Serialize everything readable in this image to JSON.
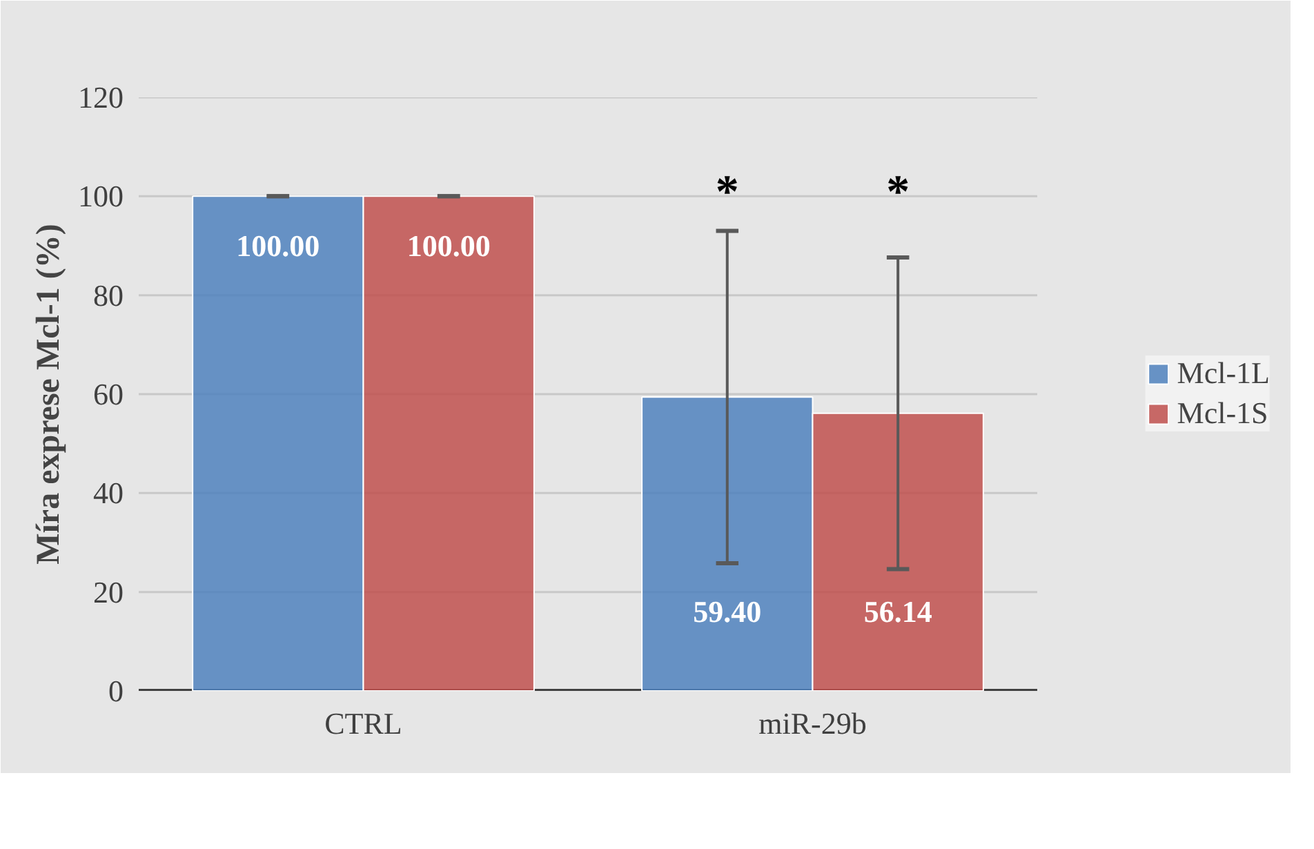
{
  "chart_data": {
    "type": "bar",
    "ylabel": "Míra exprese Mcl-1 (%)",
    "categories": [
      "CTRL",
      "miR-29b"
    ],
    "series": [
      {
        "name": "Mcl-1L",
        "color": "#4f81bd",
        "values": [
          100,
          59.4
        ],
        "errors": [
          0,
          33.6
        ],
        "value_labels": [
          "100.00",
          "59.40"
        ]
      },
      {
        "name": "Mcl-1S",
        "color": "#c0504d",
        "values": [
          100,
          56.14
        ],
        "errors": [
          0,
          31.5
        ],
        "value_labels": [
          "100.00",
          "56.14"
        ]
      }
    ],
    "ylim": [
      0,
      120
    ],
    "yticks": [
      0,
      20,
      40,
      60,
      80,
      100,
      120
    ],
    "grid": "y",
    "legend": "right",
    "annotations": [
      "*",
      "*"
    ]
  }
}
